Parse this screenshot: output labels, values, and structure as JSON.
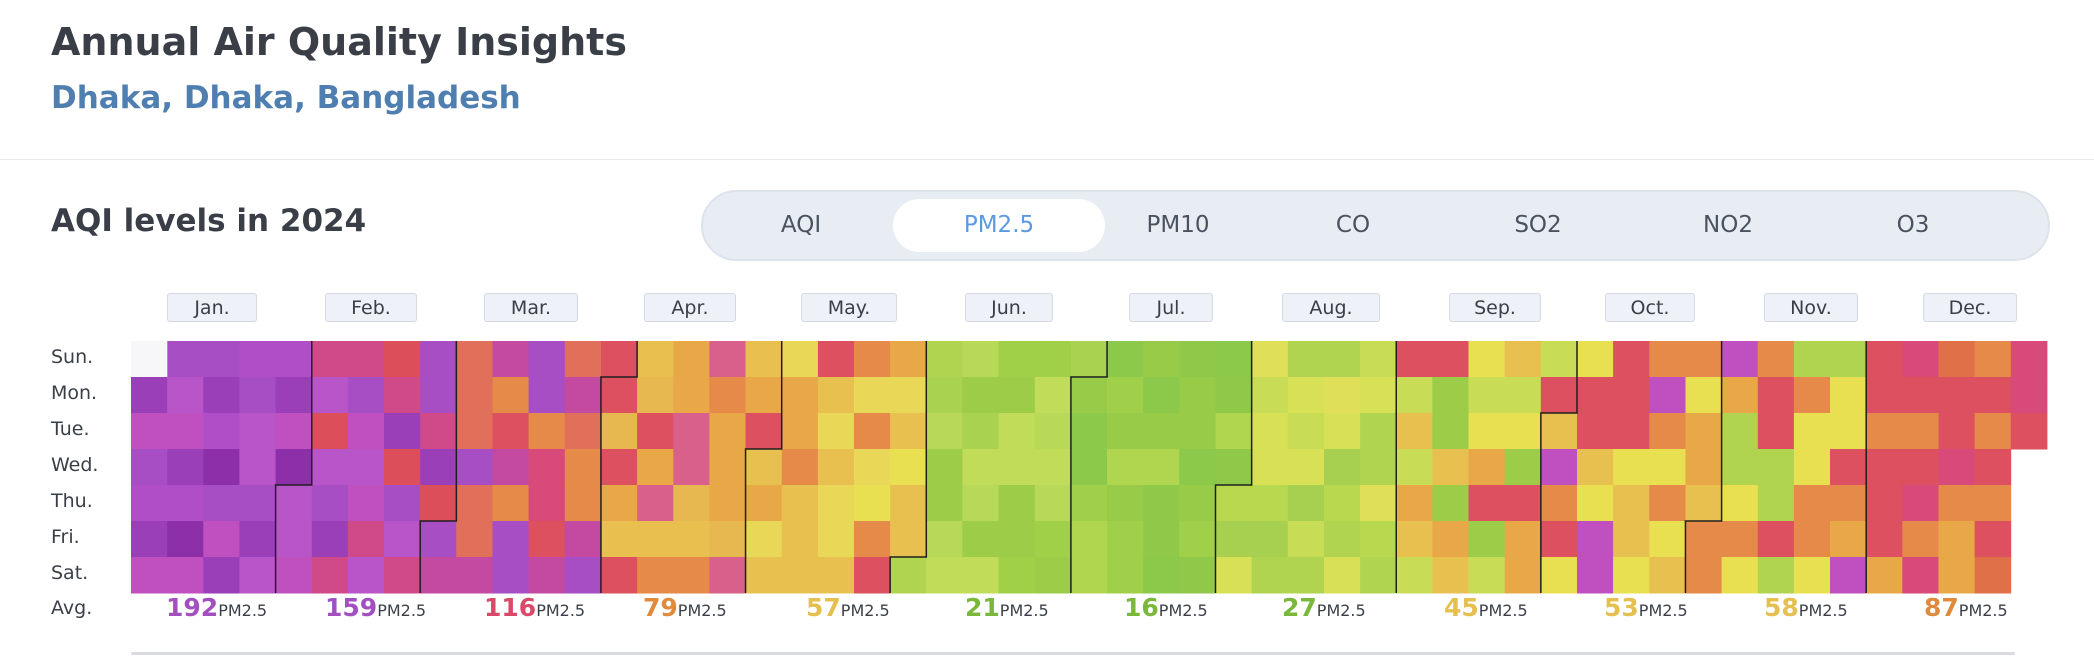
{
  "header": {
    "title": "Annual Air Quality Insights",
    "location": "Dhaka, Dhaka, Bangladesh"
  },
  "section": {
    "title": "AQI levels in 2024"
  },
  "tabs": [
    {
      "label": "AQI",
      "active": false
    },
    {
      "label": "PM2.5",
      "active": true
    },
    {
      "label": "PM10",
      "active": false
    },
    {
      "label": "CO",
      "active": false
    },
    {
      "label": "SO2",
      "active": false
    },
    {
      "label": "NO2",
      "active": false
    },
    {
      "label": "O3",
      "active": false
    }
  ],
  "days": [
    "Sun.",
    "Mon.",
    "Tue.",
    "Wed.",
    "Thu.",
    "Fri.",
    "Sat."
  ],
  "avg_label": "Avg.",
  "unit": "PM2.5",
  "months": [
    {
      "label": "Jan.",
      "avg": "192",
      "color": "#a24fc0"
    },
    {
      "label": "Feb.",
      "avg": "159",
      "color": "#a24fc0"
    },
    {
      "label": "Mar.",
      "avg": "116",
      "color": "#d9496a"
    },
    {
      "label": "Apr.",
      "avg": "79",
      "color": "#e08a3c"
    },
    {
      "label": "May.",
      "avg": "57",
      "color": "#e5c050"
    },
    {
      "label": "Jun.",
      "avg": "21",
      "color": "#79b83a"
    },
    {
      "label": "Jul.",
      "avg": "16",
      "color": "#79b83a"
    },
    {
      "label": "Aug.",
      "avg": "27",
      "color": "#79b83a"
    },
    {
      "label": "Sep.",
      "avg": "45",
      "color": "#e5c050"
    },
    {
      "label": "Oct.",
      "avg": "53",
      "color": "#e5c050"
    },
    {
      "label": "Nov.",
      "avg": "58",
      "color": "#e5c050"
    },
    {
      "label": "Dec.",
      "avg": "87",
      "color": "#e08a3c"
    }
  ],
  "chart_data": {
    "type": "heatmap",
    "title": "AQI levels in 2024",
    "metric": "PM2.5",
    "year": 2024,
    "rows": [
      "Sun.",
      "Mon.",
      "Tue.",
      "Wed.",
      "Thu.",
      "Fri.",
      "Sat."
    ],
    "monthly_averages": [
      192,
      159,
      116,
      79,
      57,
      21,
      16,
      27,
      45,
      53,
      58,
      87
    ],
    "legend_colors": {
      "good": "#8fca4a",
      "moderate": "#e8e050",
      "usg": "#e8a848",
      "unhealthy": "#dc5060",
      "very_unhealthy": "#a84ec4",
      "hazardous": "#c02a3a"
    }
  }
}
